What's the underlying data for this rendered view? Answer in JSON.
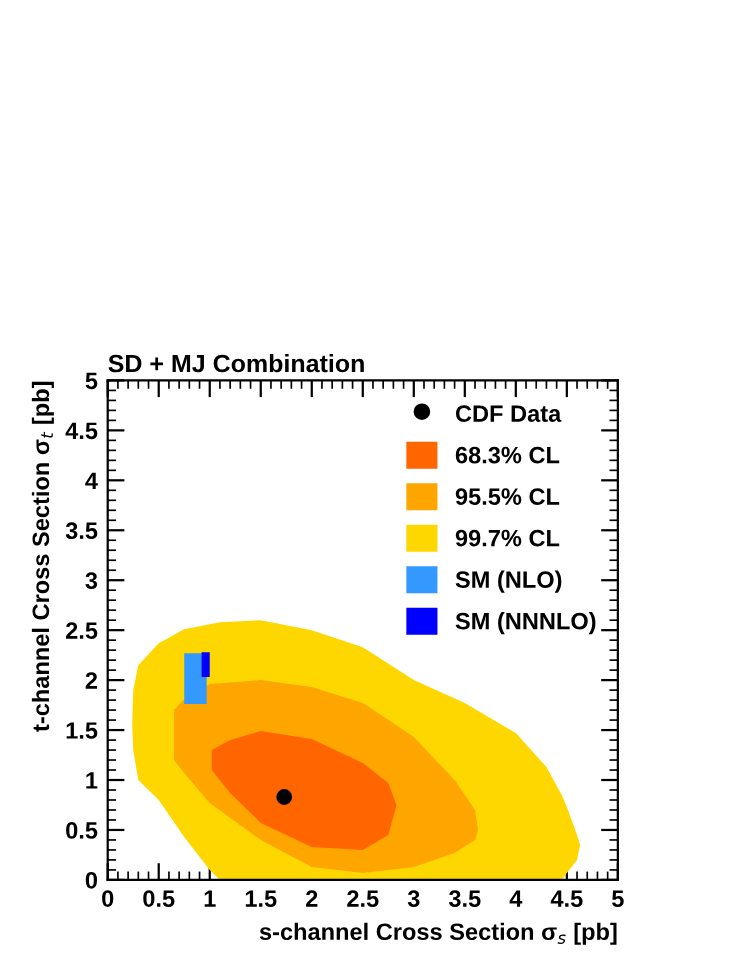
{
  "chart_data": {
    "type": "area",
    "title": "SD + MJ Combination",
    "xlabel": "s-channel Cross Section σ$_{s}$ [pb]",
    "ylabel": "t-channel Cross Section σ$_{t}$ [pb]",
    "xlim": [
      0,
      5
    ],
    "ylim": [
      0,
      5
    ],
    "xticks": [
      0,
      0.5,
      1,
      1.5,
      2,
      2.5,
      3,
      3.5,
      4,
      4.5,
      5
    ],
    "yticks": [
      0,
      0.5,
      1,
      1.5,
      2,
      2.5,
      3,
      3.5,
      4,
      4.5,
      5
    ],
    "grid": false,
    "legend": "top right",
    "series": [
      {
        "name": "CDF Data",
        "type": "scatter",
        "marker": "circle",
        "color": "#000000",
        "x": [
          1.73
        ],
        "values": [
          0.83
        ]
      },
      {
        "name": "68.3% CL",
        "color": "#ff6600",
        "x": [
          1.02,
          1.2,
          1.5,
          2.0,
          2.5,
          2.75,
          2.83,
          2.75,
          2.5,
          2.0,
          1.5,
          1.2,
          1.02
        ],
        "values": [
          1.3,
          1.4,
          1.49,
          1.41,
          1.17,
          0.97,
          0.75,
          0.45,
          0.3,
          0.33,
          0.57,
          0.87,
          1.1
        ]
      },
      {
        "name": "95.5% CL",
        "color": "#ffa500",
        "x": [
          0.65,
          0.75,
          1.0,
          1.5,
          2.0,
          2.5,
          3.0,
          3.4,
          3.6,
          3.63,
          3.6,
          3.4,
          3.0,
          2.5,
          2.0,
          1.5,
          1.0,
          0.75,
          0.65
        ],
        "values": [
          1.7,
          1.81,
          1.96,
          2.0,
          1.93,
          1.77,
          1.43,
          1.0,
          0.7,
          0.5,
          0.4,
          0.27,
          0.13,
          0.07,
          0.13,
          0.4,
          0.77,
          1.07,
          1.2
        ]
      },
      {
        "name": "99.7% CL",
        "color": "#ffd700",
        "x": [
          0.24,
          0.25,
          0.3,
          0.5,
          0.75,
          1.0,
          1.1,
          1.5,
          2.0,
          2.5,
          3.0,
          3.5,
          4.0,
          4.3,
          4.45,
          4.5,
          4.6,
          4.63,
          4.6,
          4.5,
          4.45,
          1.1,
          1.0,
          0.75,
          0.5,
          0.3,
          0.25
        ],
        "values": [
          1.55,
          1.9,
          2.15,
          2.37,
          2.51,
          2.56,
          2.58,
          2.6,
          2.5,
          2.33,
          2.0,
          1.77,
          1.47,
          1.13,
          0.85,
          0.73,
          0.45,
          0.35,
          0.2,
          0.07,
          0,
          0,
          0.1,
          0.43,
          0.8,
          1.0,
          1.3
        ]
      },
      {
        "name": "SM (NLO)",
        "color": "#3399ff",
        "x": [
          0.75,
          0.97,
          0.97,
          0.75
        ],
        "values": [
          2.27,
          2.27,
          1.76,
          1.76
        ]
      },
      {
        "name": "SM (NNNLO)",
        "color": "#0000ff",
        "x": [
          0.92,
          1.0,
          1.0,
          0.92
        ],
        "values": [
          2.28,
          2.28,
          2.03,
          2.03
        ]
      }
    ]
  }
}
